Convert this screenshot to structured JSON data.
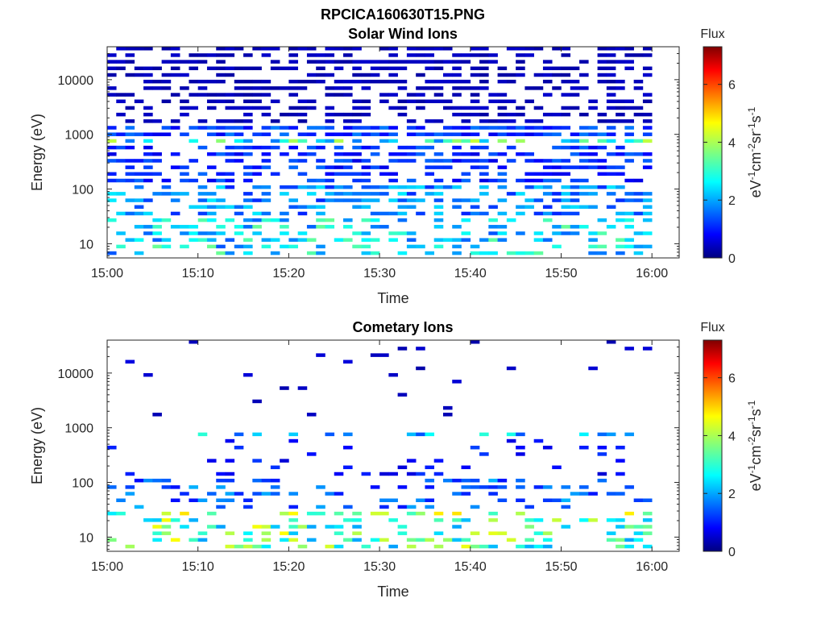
{
  "figure": {
    "title": "RPCICA160630T15.PNG"
  },
  "colormap": "jet",
  "chart_data": [
    {
      "type": "heatmap",
      "title": "Solar Wind Ions",
      "xlabel": "Time",
      "ylabel": "Energy (eV)",
      "xlim": [
        "15:00",
        "16:03"
      ],
      "x_ticks": [
        "15:00",
        "15:10",
        "15:20",
        "15:30",
        "15:40",
        "15:50",
        "16:00"
      ],
      "y_scale": "log",
      "ylim": [
        5.5,
        40000
      ],
      "y_ticks": [
        {
          "value": 10,
          "label": "10"
        },
        {
          "value": 100,
          "label": "100"
        },
        {
          "value": 1000,
          "label": "1000"
        },
        {
          "value": 10000,
          "label": "10000"
        }
      ],
      "colorbar": {
        "title": "Flux",
        "label": "eV-1cm-2sr-1s-1",
        "range": [
          0,
          7.3
        ],
        "ticks": [
          0,
          2,
          4,
          6
        ]
      },
      "time_bins": 60,
      "time_bin_minutes": 1,
      "energy_bins": 32,
      "bands": [
        {
          "energy_range_eV": [
            1500,
            40000
          ],
          "flux": 0.4,
          "fill_fraction": 0.55
        },
        {
          "energy_range_eV": [
            900,
            1500
          ],
          "flux": 1.3,
          "fill_fraction": 0.75
        },
        {
          "energy_range_eV": [
            550,
            900
          ],
          "flux": 3.0,
          "fill_fraction": 0.6
        },
        {
          "energy_range_eV": [
            120,
            550
          ],
          "flux": 1.2,
          "fill_fraction": 0.6
        },
        {
          "energy_range_eV": [
            30,
            120
          ],
          "flux": 1.9,
          "fill_fraction": 0.55
        },
        {
          "energy_range_eV": [
            5.5,
            30
          ],
          "flux": 2.5,
          "fill_fraction": 0.45
        }
      ]
    },
    {
      "type": "heatmap",
      "title": "Cometary Ions",
      "xlabel": "Time",
      "ylabel": "Energy (eV)",
      "xlim": [
        "15:00",
        "16:03"
      ],
      "x_ticks": [
        "15:00",
        "15:10",
        "15:20",
        "15:30",
        "15:40",
        "15:50",
        "16:00"
      ],
      "y_scale": "log",
      "ylim": [
        5.5,
        40000
      ],
      "y_ticks": [
        {
          "value": 10,
          "label": "10"
        },
        {
          "value": 100,
          "label": "100"
        },
        {
          "value": 1000,
          "label": "1000"
        },
        {
          "value": 10000,
          "label": "10000"
        }
      ],
      "colorbar": {
        "title": "Flux",
        "label": "eV-1cm-2sr-1s-1",
        "range": [
          0,
          7.3
        ],
        "ticks": [
          0,
          2,
          4,
          6
        ]
      },
      "time_bins": 60,
      "time_bin_minutes": 1,
      "energy_bins": 32,
      "bands": [
        {
          "energy_range_eV": [
            1500,
            40000
          ],
          "flux": 0.5,
          "fill_fraction": 0.04
        },
        {
          "energy_range_eV": [
            550,
            900
          ],
          "flux": 2.3,
          "fill_fraction": 0.35
        },
        {
          "energy_range_eV": [
            120,
            550
          ],
          "flux": 1.0,
          "fill_fraction": 0.12
        },
        {
          "energy_range_eV": [
            30,
            120
          ],
          "flux": 1.6,
          "fill_fraction": 0.3
        },
        {
          "energy_range_eV": [
            5.5,
            30
          ],
          "flux": 3.4,
          "fill_fraction": 0.4
        }
      ]
    }
  ]
}
